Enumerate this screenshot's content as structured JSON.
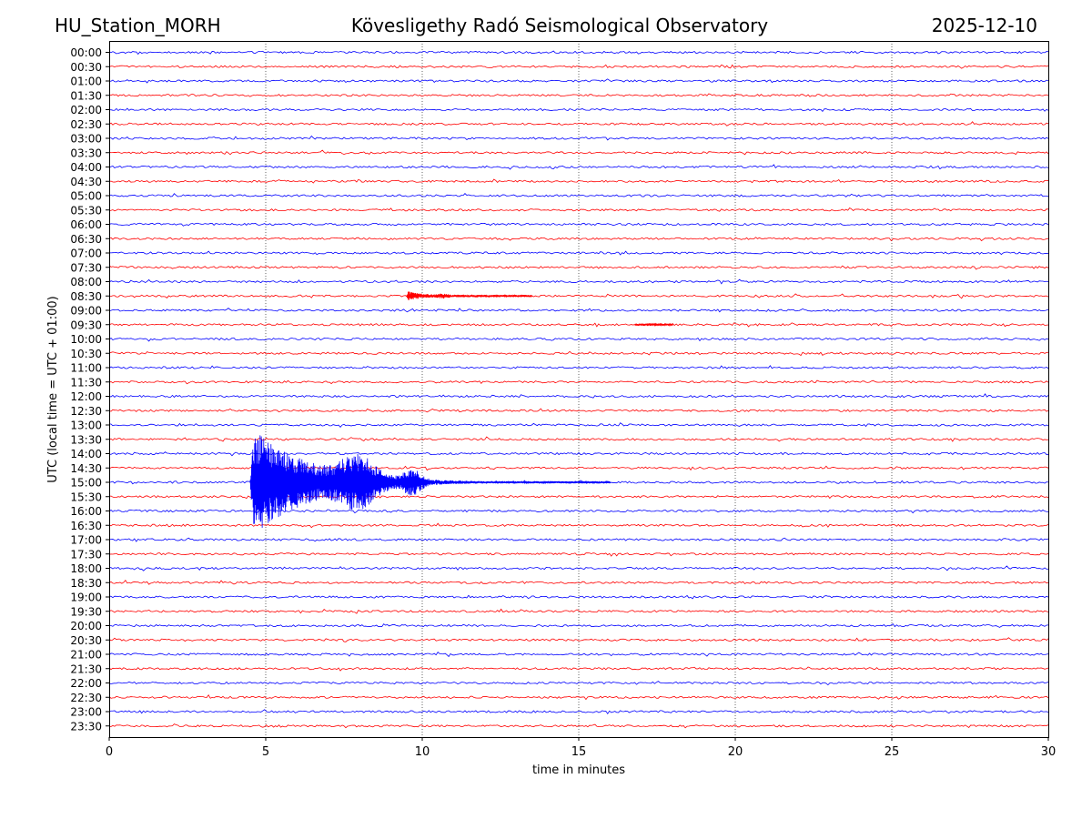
{
  "header": {
    "station": "HU_Station_MORH",
    "observatory": "Kövesligethy Radó Seismological Observatory",
    "date": "2025-12-10"
  },
  "chart_data": {
    "type": "line",
    "title": "Kövesligethy Radó Seismological Observatory",
    "xlabel": "time in minutes",
    "ylabel": "UTC (local time = UTC + 01:00)",
    "xlim": [
      0,
      30
    ],
    "x_ticks": [
      0,
      5,
      10,
      15,
      20,
      25,
      30
    ],
    "x_tick_labels": [
      "0",
      "5",
      "10",
      "15",
      "20",
      "25",
      "30"
    ],
    "grid": "vertical dotted at 5, 10, 15, 20, 25",
    "row_labels": [
      "00:00",
      "00:30",
      "01:00",
      "01:30",
      "02:00",
      "02:30",
      "03:00",
      "03:30",
      "04:00",
      "04:30",
      "05:00",
      "05:30",
      "06:00",
      "06:30",
      "07:00",
      "07:30",
      "08:00",
      "08:30",
      "09:00",
      "09:30",
      "10:00",
      "10:30",
      "11:00",
      "11:30",
      "12:00",
      "12:30",
      "13:00",
      "13:30",
      "14:00",
      "14:30",
      "15:00",
      "15:30",
      "16:00",
      "16:30",
      "17:00",
      "17:30",
      "18:00",
      "18:30",
      "19:00",
      "19:30",
      "20:00",
      "20:30",
      "21:00",
      "21:30",
      "22:00",
      "22:30",
      "23:00",
      "23:30"
    ],
    "trace_colors": [
      "#0000ff",
      "#ff0000"
    ],
    "events": [
      {
        "row": "08:30",
        "start_min": 9.5,
        "end_min": 13.5,
        "peak_rows": 0.35
      },
      {
        "row": "09:30",
        "start_min": 16.8,
        "end_min": 18.0,
        "peak_rows": 0.12
      },
      {
        "row": "15:00",
        "start_min": 4.5,
        "end_min": 16.0,
        "peak_rows": 3.9
      }
    ]
  }
}
